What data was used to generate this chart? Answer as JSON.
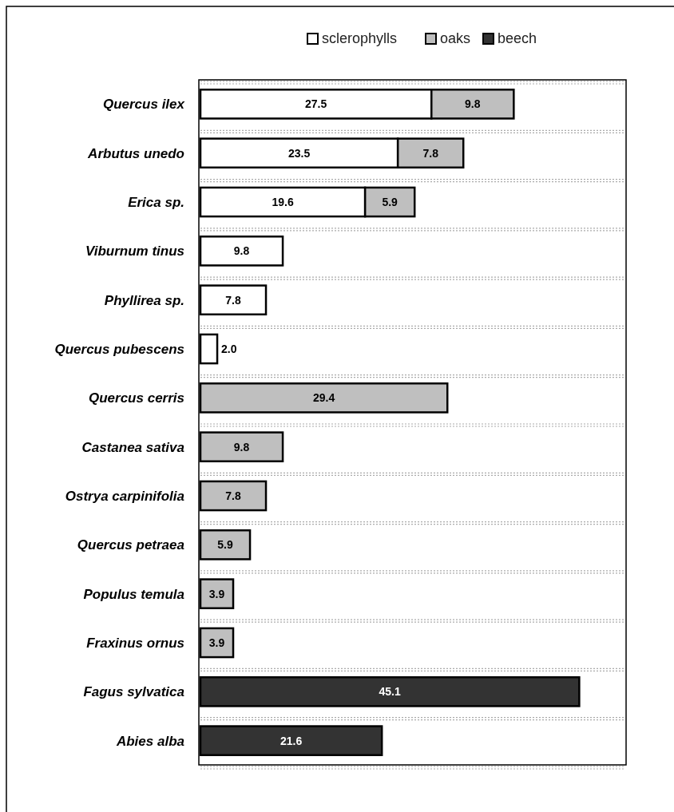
{
  "chart_data": {
    "type": "bar",
    "orientation": "horizontal",
    "stacked": true,
    "categories": [
      "Quercus ilex",
      "Arbutus unedo",
      "Erica sp.",
      "Viburnum tinus",
      "Phyllirea sp.",
      "Quercus pubescens",
      "Quercus cerris",
      "Castanea sativa",
      "Ostrya carpinifolia",
      "Quercus petraea",
      "Populus temula",
      "Fraxinus ornus",
      "Fagus sylvatica",
      "Abies alba"
    ],
    "series": [
      {
        "name": "sclerophylls",
        "color": "#ffffff",
        "values": [
          27.5,
          23.5,
          19.6,
          9.8,
          7.8,
          2.0,
          null,
          null,
          null,
          null,
          null,
          null,
          null,
          null
        ],
        "value_labels": [
          "27.5",
          "23.5",
          "19.6",
          "9.8",
          "7.8",
          "2.0",
          null,
          null,
          null,
          null,
          null,
          null,
          null,
          null
        ]
      },
      {
        "name": "oaks",
        "color": "#bfbfbf",
        "values": [
          9.8,
          7.8,
          5.9,
          null,
          null,
          null,
          29.4,
          9.8,
          7.8,
          5.9,
          3.9,
          3.9,
          null,
          null
        ],
        "value_labels": [
          "9.8",
          "7.8",
          "5.9",
          null,
          null,
          null,
          "29.4",
          "9.8",
          "7.8",
          "5.9",
          "3.9",
          "3.9",
          null,
          null
        ]
      },
      {
        "name": "beech",
        "color": "#333333",
        "values": [
          null,
          null,
          null,
          null,
          null,
          null,
          null,
          null,
          null,
          null,
          null,
          null,
          45.1,
          21.6
        ],
        "value_labels": [
          null,
          null,
          null,
          null,
          null,
          null,
          null,
          null,
          null,
          null,
          null,
          null,
          "45.1",
          "21.6"
        ]
      }
    ],
    "grid": "y",
    "legend": "top"
  }
}
